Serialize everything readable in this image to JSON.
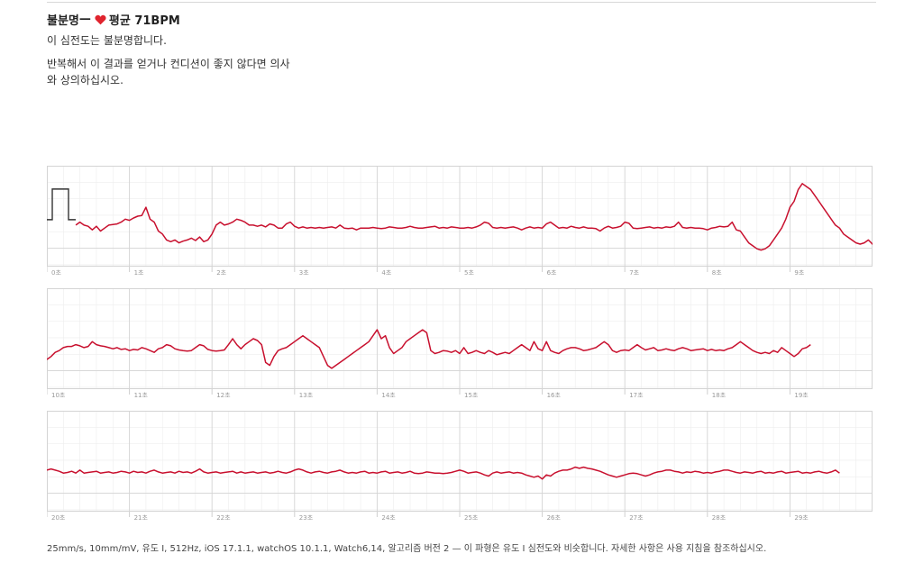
{
  "header": {
    "classification": "불분명",
    "dash": " — ",
    "average": "평균 71BPM",
    "line1": "이 심전도는 불분명합니다.",
    "line2": "반복해서 이 결과를 얻거나 컨디션이 좋지 않다면 의사와 상의하십시오."
  },
  "footer": "25mm/s, 10mm/mV, 유도 I, 512Hz, iOS 17.1.1, watchOS 10.1.1, Watch6,14, 알고리즘 버전 2 — 이 파형은 유도 I 심전도와 비슷합니다. 자세한 사항은 사용 지침을 참조하십시오.",
  "colors": {
    "trace": "#c8102e",
    "grid_major": "#d4d4d4",
    "grid_minor": "#ededed",
    "calibration": "#333333",
    "heart": "#e0242e"
  },
  "chart_data": {
    "type": "line",
    "x_unit": "s",
    "sample_step_s": 0.05,
    "strips": [
      {
        "tick_labels": [
          "0초",
          "1초",
          "2초",
          "3초",
          "4초",
          "5초",
          "6초",
          "7초",
          "8초",
          "9초"
        ],
        "x_range": [
          0,
          10
        ],
        "calibration_pulse": true,
        "trace_start_s": 0.35,
        "values": [
          0.0,
          0.05,
          0.0,
          -0.02,
          -0.08,
          -0.02,
          -0.1,
          -0.05,
          0.0,
          0.01,
          0.02,
          0.05,
          0.1,
          0.08,
          0.12,
          0.15,
          0.16,
          0.3,
          0.1,
          0.05,
          -0.1,
          -0.15,
          -0.25,
          -0.28,
          -0.25,
          -0.3,
          -0.27,
          -0.25,
          -0.22,
          -0.26,
          -0.2,
          -0.28,
          -0.25,
          -0.15,
          0.0,
          0.05,
          0.0,
          0.02,
          0.05,
          0.1,
          0.08,
          0.05,
          0.0,
          0.0,
          -0.02,
          0.0,
          -0.03,
          0.02,
          0.0,
          -0.05,
          -0.05,
          0.02,
          0.05,
          -0.02,
          -0.05,
          -0.03,
          -0.05,
          -0.04,
          -0.05,
          -0.04,
          -0.05,
          -0.04,
          -0.03,
          -0.05,
          0.0,
          -0.05,
          -0.06,
          -0.05,
          -0.08,
          -0.05,
          -0.05,
          -0.05,
          -0.04,
          -0.05,
          -0.06,
          -0.05,
          -0.03,
          -0.04,
          -0.05,
          -0.05,
          -0.04,
          -0.02,
          -0.04,
          -0.05,
          -0.05,
          -0.04,
          -0.03,
          -0.02,
          -0.05,
          -0.04,
          -0.05,
          -0.03,
          -0.04,
          -0.05,
          -0.05,
          -0.04,
          -0.05,
          -0.03,
          0.0,
          0.05,
          0.03,
          -0.04,
          -0.05,
          -0.04,
          -0.05,
          -0.04,
          -0.03,
          -0.05,
          -0.08,
          -0.05,
          -0.03,
          -0.05,
          -0.04,
          -0.05,
          0.02,
          0.05,
          0.0,
          -0.05,
          -0.04,
          -0.05,
          -0.02,
          -0.04,
          -0.05,
          -0.03,
          -0.05,
          -0.05,
          -0.06,
          -0.1,
          -0.05,
          -0.02,
          -0.05,
          -0.04,
          -0.02,
          0.05,
          0.03,
          -0.05,
          -0.06,
          -0.05,
          -0.04,
          -0.03,
          -0.05,
          -0.04,
          -0.05,
          -0.03,
          -0.04,
          -0.02,
          0.05,
          -0.04,
          -0.05,
          -0.04,
          -0.05,
          -0.05,
          -0.06,
          -0.08,
          -0.05,
          -0.04,
          -0.02,
          -0.03,
          -0.02,
          0.05,
          -0.08,
          -0.1,
          -0.2,
          -0.3,
          -0.35,
          -0.4,
          -0.42,
          -0.4,
          -0.35,
          -0.25,
          -0.15,
          -0.05,
          0.1,
          0.3,
          0.4,
          0.6,
          0.7,
          0.65,
          0.6,
          0.5,
          0.4,
          0.3,
          0.2,
          0.1,
          0.0,
          -0.05,
          -0.15,
          -0.2,
          -0.25,
          -0.3,
          -0.32,
          -0.3,
          -0.25,
          -0.32,
          -0.4,
          -0.35,
          -0.25,
          -0.15,
          -0.05,
          0.05,
          0.15,
          0.25,
          0.3,
          0.28,
          0.2,
          0.05,
          -0.05,
          -0.15
        ],
        "ylim": [
          -0.7,
          1.0
        ]
      },
      {
        "tick_labels": [
          "10초",
          "11초",
          "12초",
          "13초",
          "14초",
          "15초",
          "16초",
          "17초",
          "18초",
          "19초"
        ],
        "x_range": [
          10,
          20
        ],
        "calibration_pulse": false,
        "trace_start_s": 10.0,
        "values": [
          -0.2,
          -0.15,
          -0.08,
          -0.05,
          0.0,
          0.02,
          0.02,
          0.05,
          0.03,
          0.0,
          0.02,
          0.1,
          0.05,
          0.03,
          0.02,
          0.0,
          -0.02,
          0.0,
          -0.03,
          -0.02,
          -0.05,
          -0.03,
          -0.04,
          0.0,
          -0.02,
          -0.05,
          -0.08,
          -0.02,
          0.0,
          0.05,
          0.03,
          -0.02,
          -0.04,
          -0.05,
          -0.06,
          -0.05,
          0.0,
          0.05,
          0.03,
          -0.03,
          -0.05,
          -0.06,
          -0.05,
          -0.04,
          0.05,
          0.15,
          0.05,
          -0.02,
          0.05,
          0.1,
          0.15,
          0.12,
          0.05,
          -0.25,
          -0.3,
          -0.15,
          -0.05,
          -0.02,
          0.0,
          0.05,
          0.1,
          0.15,
          0.2,
          0.15,
          0.1,
          0.05,
          0.0,
          -0.15,
          -0.3,
          -0.35,
          -0.3,
          -0.25,
          -0.2,
          -0.15,
          -0.1,
          -0.05,
          0.0,
          0.05,
          0.1,
          0.2,
          0.3,
          0.15,
          0.2,
          0.0,
          -0.1,
          -0.05,
          0.0,
          0.1,
          0.15,
          0.2,
          0.25,
          0.3,
          0.25,
          -0.05,
          -0.1,
          -0.08,
          -0.05,
          -0.06,
          -0.08,
          -0.05,
          -0.1,
          0.0,
          -0.1,
          -0.08,
          -0.05,
          -0.08,
          -0.1,
          -0.05,
          -0.08,
          -0.12,
          -0.1,
          -0.08,
          -0.1,
          -0.05,
          0.0,
          0.05,
          0.0,
          -0.05,
          0.1,
          -0.02,
          -0.05,
          0.1,
          -0.05,
          -0.08,
          -0.1,
          -0.05,
          -0.02,
          0.0,
          0.0,
          -0.02,
          -0.05,
          -0.04,
          -0.02,
          0.0,
          0.05,
          0.1,
          0.05,
          -0.05,
          -0.08,
          -0.05,
          -0.04,
          -0.05,
          0.0,
          0.05,
          0.0,
          -0.04,
          -0.02,
          0.0,
          -0.05,
          -0.04,
          -0.02,
          -0.04,
          -0.05,
          -0.02,
          0.0,
          -0.02,
          -0.05,
          -0.04,
          -0.03,
          -0.02,
          -0.05,
          -0.03,
          -0.05,
          -0.04,
          -0.05,
          -0.02,
          0.0,
          0.05,
          0.1,
          0.05,
          0.0,
          -0.05,
          -0.08,
          -0.1,
          -0.08,
          -0.1,
          -0.05,
          -0.08,
          0.0,
          -0.05,
          -0.1,
          -0.15,
          -0.1,
          -0.02,
          0.0,
          0.05
        ],
        "ylim": [
          -0.7,
          1.0
        ]
      },
      {
        "tick_labels": [
          "20초",
          "21초",
          "22초",
          "23초",
          "24초",
          "25초",
          "26초",
          "27초",
          "28초",
          "29초"
        ],
        "x_range": [
          20,
          30
        ],
        "calibration_pulse": false,
        "trace_start_s": 20.0,
        "values": [
          0.0,
          0.02,
          0.0,
          -0.02,
          -0.05,
          -0.04,
          -0.02,
          -0.05,
          0.0,
          -0.05,
          -0.04,
          -0.03,
          -0.02,
          -0.05,
          -0.04,
          -0.03,
          -0.05,
          -0.04,
          -0.02,
          -0.03,
          -0.05,
          -0.02,
          -0.04,
          -0.03,
          -0.05,
          -0.02,
          0.0,
          -0.03,
          -0.05,
          -0.04,
          -0.03,
          -0.05,
          -0.02,
          -0.04,
          -0.03,
          -0.05,
          -0.02,
          0.02,
          -0.03,
          -0.05,
          -0.04,
          -0.03,
          -0.05,
          -0.04,
          -0.03,
          -0.02,
          -0.05,
          -0.03,
          -0.05,
          -0.04,
          -0.03,
          -0.05,
          -0.04,
          -0.03,
          -0.05,
          -0.04,
          -0.02,
          -0.04,
          -0.05,
          -0.03,
          0.0,
          0.02,
          0.0,
          -0.03,
          -0.05,
          -0.03,
          -0.02,
          -0.04,
          -0.05,
          -0.03,
          -0.02,
          0.0,
          -0.03,
          -0.05,
          -0.04,
          -0.05,
          -0.03,
          -0.02,
          -0.05,
          -0.04,
          -0.05,
          -0.03,
          -0.02,
          -0.05,
          -0.04,
          -0.03,
          -0.05,
          -0.04,
          -0.02,
          -0.05,
          -0.06,
          -0.05,
          -0.03,
          -0.04,
          -0.05,
          -0.05,
          -0.06,
          -0.05,
          -0.04,
          -0.02,
          0.0,
          -0.02,
          -0.05,
          -0.04,
          -0.03,
          -0.05,
          -0.08,
          -0.1,
          -0.05,
          -0.03,
          -0.05,
          -0.04,
          -0.03,
          -0.05,
          -0.04,
          -0.05,
          -0.08,
          -0.1,
          -0.12,
          -0.1,
          -0.15,
          -0.08,
          -0.1,
          -0.05,
          -0.02,
          0.0,
          0.0,
          0.02,
          0.05,
          0.03,
          0.05,
          0.03,
          0.02,
          0.0,
          -0.02,
          -0.05,
          -0.08,
          -0.1,
          -0.12,
          -0.1,
          -0.08,
          -0.06,
          -0.05,
          -0.06,
          -0.08,
          -0.1,
          -0.08,
          -0.05,
          -0.03,
          -0.02,
          0.0,
          0.0,
          -0.02,
          -0.03,
          -0.05,
          -0.03,
          -0.04,
          -0.02,
          -0.03,
          -0.05,
          -0.04,
          -0.05,
          -0.03,
          -0.02,
          0.0,
          0.0,
          -0.02,
          -0.04,
          -0.05,
          -0.03,
          -0.04,
          -0.05,
          -0.03,
          -0.02,
          -0.05,
          -0.04,
          -0.05,
          -0.03,
          -0.02,
          -0.05,
          -0.04,
          -0.03,
          -0.02,
          -0.05,
          -0.04,
          -0.05,
          -0.03,
          -0.02,
          -0.04,
          -0.05,
          -0.03,
          0.0,
          -0.05
        ],
        "ylim": [
          -0.7,
          1.0
        ]
      }
    ]
  }
}
